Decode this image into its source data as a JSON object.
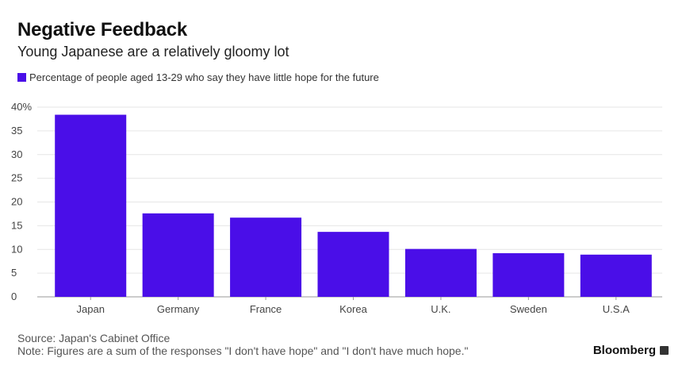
{
  "title": "Negative Feedback",
  "subtitle": "Young Japanese are a relatively gloomy lot",
  "legend_label": "Percentage of people aged 13-29 who say they have little hope for the future",
  "source": "Source: Japan's Cabinet Office",
  "note": "Note: Figures are a sum of the responses \"I don't have hope\" and \"I don't have much hope.\"",
  "brand": "Bloomberg",
  "colors": {
    "bar": "#4a0ee8",
    "grid": "#e6e6e6",
    "axis": "#999999"
  },
  "chart_data": {
    "type": "bar",
    "categories": [
      "Japan",
      "Germany",
      "France",
      "Korea",
      "U.K.",
      "Sweden",
      "U.S.A"
    ],
    "series": [
      {
        "name": "Percentage of people aged 13-29 who say they have little hope for the future",
        "values": [
          38.4,
          17.6,
          16.7,
          13.7,
          10.1,
          9.2,
          8.9
        ]
      }
    ],
    "yticks": [
      "0",
      "5",
      "10",
      "15",
      "20",
      "25",
      "30",
      "35",
      "40%"
    ],
    "ylim": [
      0,
      40
    ],
    "grid": true,
    "legend_position": "top-left"
  }
}
